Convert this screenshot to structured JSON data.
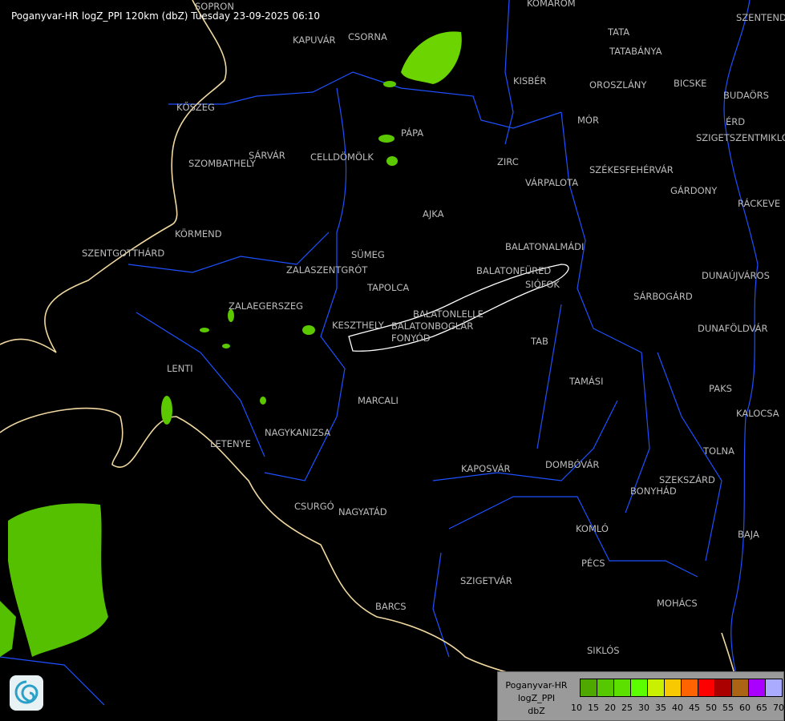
{
  "title": "Poganyvar-HR logZ_PPI 120km (dbZ) Tuesday 23-09-2025 06:10",
  "cities": [
    "SOPRON",
    "KOMÁROM",
    "SZENTENDRE",
    "KAPUVÁR",
    "CSORNA",
    "TATA",
    "TATABÁNYA",
    "KISBÉR",
    "OROSZLÁNY",
    "BICSKE",
    "BUDAÖRS",
    "KŐSZEG",
    "MÓR",
    "ÉRD",
    "SZIGETSZENTMIKLÓS",
    "PÁPA",
    "SÁRVÁR",
    "CELLDÖMÖLK",
    "SZOMBATHELY",
    "ZIRC",
    "VÁRPALOTA",
    "SZÉKESFEHÉRVÁR",
    "GÁRDONY",
    "RÁCKEVE",
    "AJKA",
    "KÖRMEND",
    "BALATONALMÁDI",
    "SZENTGOTTHÁRD",
    "SÜMEG",
    "ZALASZENTGRÓT",
    "BALATONFÜRED",
    "SIÓFOK",
    "DUNAÚJVÁROS",
    "TAPOLCA",
    "SÁRBOGÁRD",
    "ZALAEGERSZEG",
    "KESZTHELY",
    "BALATONLELLE",
    "BALATONBOGLÁR",
    "FONYÓD",
    "DUNAFÖLDVÁR",
    "TAB",
    "LENTI",
    "TAMÁSI",
    "PAKS",
    "MARCALI",
    "KALOCSA",
    "NAGYKANIZSA",
    "LETENYE",
    "TOLNA",
    "KAPOSVÁR",
    "DOMBÓVÁR",
    "SZEKSZÁRD",
    "BONYHÁD",
    "CSURGÓ",
    "NAGYATÁD",
    "KOMLÓ",
    "BAJA",
    "PÉCS",
    "SZIGETVÁR",
    "BARCS",
    "MOHÁCS",
    "SIKLÓS"
  ],
  "legend": {
    "station": "Poganyvar-HR",
    "product": "logZ_PPI",
    "unit": "dbZ",
    "ticks": [
      "10",
      "15",
      "20",
      "25",
      "30",
      "35",
      "40",
      "45",
      "50",
      "55",
      "60",
      "65",
      "70"
    ],
    "colors": [
      "#4ea800",
      "#55c800",
      "#5ce000",
      "#5cff00",
      "#c8f000",
      "#f8c800",
      "#ff6400",
      "#ff0000",
      "#aa0000",
      "#aa6414",
      "#aa00ff",
      "#aaaaff"
    ]
  },
  "colors": {
    "border": "#f0d8a0",
    "river": "#1e50ff",
    "county": "#1e50ff",
    "city_outline": "#ffffff",
    "echo": "#5cc800"
  },
  "logo_icon": "weather-service-logo"
}
